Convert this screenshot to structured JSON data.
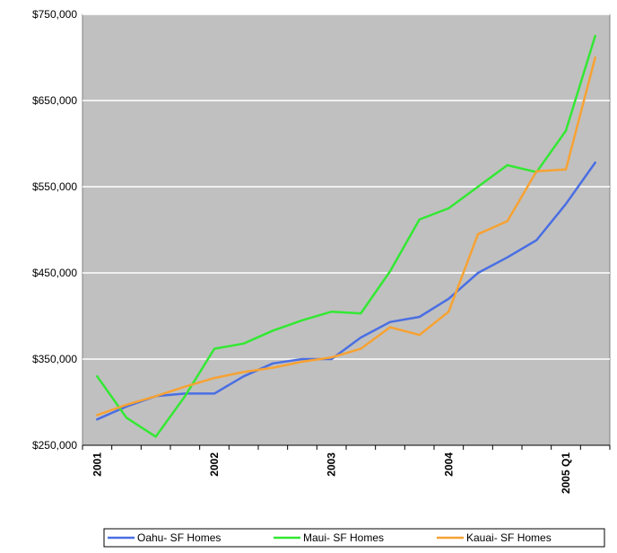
{
  "chart_data": {
    "type": "line",
    "title": "",
    "xlabel": "",
    "ylabel": "",
    "ylim": [
      250000,
      750000
    ],
    "y_ticks": [
      "$750,000",
      "$650,000",
      "$550,000",
      "$450,000",
      "$350,000",
      "$250,000"
    ],
    "y_tick_values": [
      750000,
      650000,
      550000,
      450000,
      350000,
      250000
    ],
    "x_tick_labels": [
      {
        "label": "2001",
        "index": 0
      },
      {
        "label": "2002",
        "index": 4
      },
      {
        "label": "2003",
        "index": 8
      },
      {
        "label": "2004",
        "index": 12
      },
      {
        "label": "2005 Q1",
        "index": 16
      }
    ],
    "x": [
      "2001 Q1",
      "2001 Q2",
      "2001 Q3",
      "2001 Q4",
      "2002 Q1",
      "2002 Q2",
      "2002 Q3",
      "2002 Q4",
      "2003 Q1",
      "2003 Q2",
      "2003 Q3",
      "2003 Q4",
      "2004 Q1",
      "2004 Q2",
      "2004 Q3",
      "2004 Q4",
      "2005 Q1",
      "2005 Q2"
    ],
    "grid": true,
    "legend_position": "bottom",
    "series": [
      {
        "name": "Oahu- SF Homes",
        "color": "#4a6fe3",
        "values": [
          280000,
          295000,
          307000,
          310000,
          310000,
          330000,
          345000,
          350000,
          350000,
          375000,
          393000,
          399000,
          420000,
          450000,
          468000,
          488000,
          530000,
          578000
        ]
      },
      {
        "name": "Maui- SF Homes",
        "color": "#33e833",
        "values": [
          330000,
          282000,
          260000,
          307000,
          362000,
          368000,
          383000,
          395000,
          405000,
          403000,
          452000,
          512000,
          525000,
          550000,
          575000,
          567000,
          615000,
          725000
        ]
      },
      {
        "name": "Kauai- SF Homes",
        "color": "#f7a233",
        "values": [
          285000,
          297000,
          307000,
          318000,
          328000,
          335000,
          340000,
          347000,
          352000,
          362000,
          387000,
          378000,
          405000,
          495000,
          510000,
          568000,
          570000,
          700000
        ]
      }
    ]
  }
}
